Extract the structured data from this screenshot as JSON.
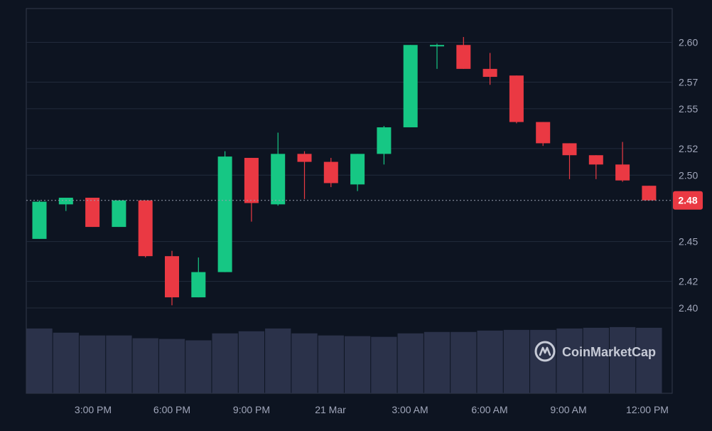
{
  "colors": {
    "background": "#0d1421",
    "grid": "#222b3c",
    "frame": "#323a4b",
    "up": "#16c784",
    "down": "#ea3943",
    "volume": "#2b324a",
    "axis_text": "#a1a7bb",
    "price_tag_bg": "#ea3943",
    "price_tag_text": "#ffffff",
    "watermark": "#c6cad6"
  },
  "watermark": {
    "text": "CoinMarketCap",
    "icon": "coinmarketcap-logo-icon"
  },
  "chart_data": {
    "type": "candlestick",
    "ylim": [
      2.385,
      2.625
    ],
    "y_ticks": [
      {
        "value": 2.4,
        "label": "2.40"
      },
      {
        "value": 2.42,
        "label": "2.42"
      },
      {
        "value": 2.45,
        "label": "2.45"
      },
      {
        "value": 2.5,
        "label": "2.50"
      },
      {
        "value": 2.52,
        "label": "2.52"
      },
      {
        "value": 2.55,
        "label": "2.55"
      },
      {
        "value": 2.57,
        "label": "2.57"
      },
      {
        "value": 2.6,
        "label": "2.60"
      }
    ],
    "x_ticks": [
      "3:00 PM",
      "6:00 PM",
      "9:00 PM",
      "21 Mar",
      "3:00 AM",
      "6:00 AM",
      "9:00 AM",
      "12:00 PM"
    ],
    "last_price": {
      "value": 2.481,
      "label": "2.48"
    },
    "candles": [
      {
        "o": 2.452,
        "h": 2.481,
        "l": 2.452,
        "c": 2.48,
        "v": 0.93
      },
      {
        "o": 2.478,
        "h": 2.483,
        "l": 2.473,
        "c": 2.483,
        "v": 0.87
      },
      {
        "o": 2.483,
        "h": 2.483,
        "l": 2.461,
        "c": 2.461,
        "v": 0.83
      },
      {
        "o": 2.461,
        "h": 2.481,
        "l": 2.461,
        "c": 2.481,
        "v": 0.83
      },
      {
        "o": 2.481,
        "h": 2.481,
        "l": 2.438,
        "c": 2.439,
        "v": 0.79
      },
      {
        "o": 2.439,
        "h": 2.443,
        "l": 2.402,
        "c": 2.408,
        "v": 0.78
      },
      {
        "o": 2.408,
        "h": 2.438,
        "l": 2.408,
        "c": 2.427,
        "v": 0.76
      },
      {
        "o": 2.427,
        "h": 2.518,
        "l": 2.427,
        "c": 2.514,
        "v": 0.86
      },
      {
        "o": 2.513,
        "h": 2.513,
        "l": 2.465,
        "c": 2.479,
        "v": 0.89
      },
      {
        "o": 2.478,
        "h": 2.532,
        "l": 2.477,
        "c": 2.516,
        "v": 0.93
      },
      {
        "o": 2.516,
        "h": 2.518,
        "l": 2.482,
        "c": 2.51,
        "v": 0.86
      },
      {
        "o": 2.51,
        "h": 2.513,
        "l": 2.491,
        "c": 2.494,
        "v": 0.83
      },
      {
        "o": 2.493,
        "h": 2.516,
        "l": 2.488,
        "c": 2.516,
        "v": 0.82
      },
      {
        "o": 2.516,
        "h": 2.537,
        "l": 2.508,
        "c": 2.536,
        "v": 0.81
      },
      {
        "o": 2.536,
        "h": 2.598,
        "l": 2.536,
        "c": 2.598,
        "v": 0.86
      },
      {
        "o": 2.597,
        "h": 2.599,
        "l": 2.58,
        "c": 2.598,
        "v": 0.88
      },
      {
        "o": 2.598,
        "h": 2.604,
        "l": 2.58,
        "c": 2.58,
        "v": 0.88
      },
      {
        "o": 2.58,
        "h": 2.592,
        "l": 2.568,
        "c": 2.574,
        "v": 0.9
      },
      {
        "o": 2.575,
        "h": 2.575,
        "l": 2.539,
        "c": 2.54,
        "v": 0.91
      },
      {
        "o": 2.54,
        "h": 2.54,
        "l": 2.522,
        "c": 2.524,
        "v": 0.91
      },
      {
        "o": 2.524,
        "h": 2.524,
        "l": 2.497,
        "c": 2.515,
        "v": 0.93
      },
      {
        "o": 2.515,
        "h": 2.515,
        "l": 2.497,
        "c": 2.508,
        "v": 0.94
      },
      {
        "o": 2.508,
        "h": 2.525,
        "l": 2.495,
        "c": 2.496,
        "v": 0.95
      },
      {
        "o": 2.492,
        "h": 2.492,
        "l": 2.481,
        "c": 2.481,
        "v": 0.94
      }
    ]
  }
}
